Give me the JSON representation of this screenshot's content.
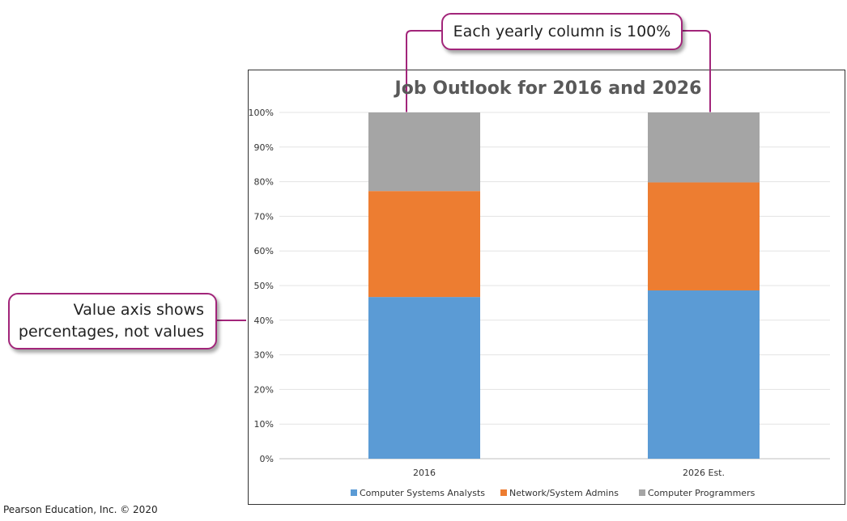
{
  "chart_data": {
    "type": "bar",
    "stacked": "100%",
    "title": "Job Outlook for 2016 and 2026",
    "categories": [
      "2016",
      "2026 Est."
    ],
    "series": [
      {
        "name": "Computer Systems Analysts",
        "color": "#5b9bd5",
        "values": [
          46.7,
          48.6
        ]
      },
      {
        "name": "Network/System Admins",
        "color": "#ed7d31",
        "values": [
          30.6,
          31.2
        ]
      },
      {
        "name": "Computer Programmers",
        "color": "#a5a5a5",
        "values": [
          22.7,
          20.2
        ]
      }
    ],
    "y_ticks": [
      "0%",
      "10%",
      "20%",
      "30%",
      "40%",
      "50%",
      "60%",
      "70%",
      "80%",
      "90%",
      "100%"
    ],
    "ylim": [
      0,
      100
    ],
    "grid": true,
    "legend_position": "bottom"
  },
  "callouts": {
    "top": "Each yearly column is 100%",
    "left_line1": "Value axis shows",
    "left_line2": "percentages, not values"
  },
  "copyright": "Pearson Education, Inc. © 2020"
}
